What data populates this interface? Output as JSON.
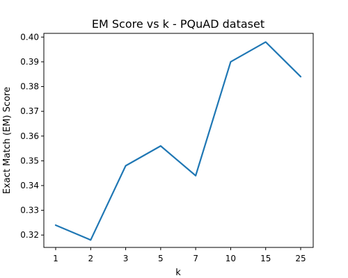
{
  "chart_data": {
    "type": "line",
    "title": "EM Score vs k - PQuAD dataset",
    "xlabel": "k",
    "ylabel": "Exact Match (EM) Score",
    "categories": [
      "1",
      "2",
      "3",
      "5",
      "7",
      "10",
      "15",
      "25"
    ],
    "series": [
      {
        "values": [
          0.324,
          0.318,
          0.348,
          0.356,
          0.344,
          0.39,
          0.398,
          0.384
        ],
        "color": "#1f77b4"
      }
    ],
    "yticks": [
      "0.32",
      "0.33",
      "0.34",
      "0.35",
      "0.36",
      "0.37",
      "0.38",
      "0.39",
      "0.40"
    ],
    "ylim": [
      0.315,
      0.4015
    ],
    "grid": false,
    "legend": false
  }
}
